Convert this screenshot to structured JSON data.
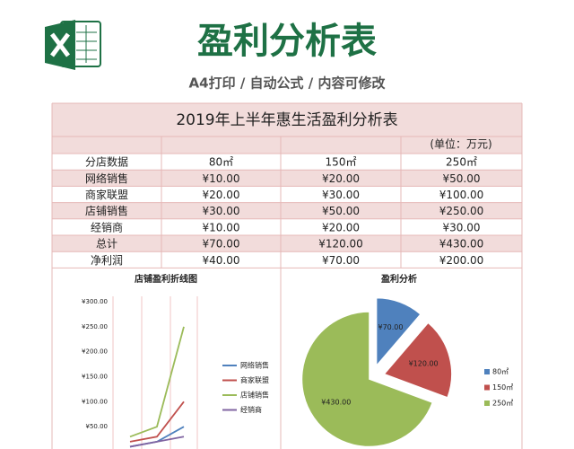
{
  "header": {
    "title": "盈利分析表",
    "subtitle": "A4打印 / 自动公式 / 内容可修改"
  },
  "table": {
    "title": "2019年上半年惠生活盈利分析表",
    "unit": "(单位：万元)",
    "rows": [
      [
        "分店数据",
        "80㎡",
        "150㎡",
        "250㎡"
      ],
      [
        "网络销售",
        "¥10.00",
        "¥20.00",
        "¥50.00"
      ],
      [
        "商家联盟",
        "¥20.00",
        "¥30.00",
        "¥100.00"
      ],
      [
        "店铺销售",
        "¥30.00",
        "¥50.00",
        "¥250.00"
      ],
      [
        "经销商",
        "¥10.00",
        "¥20.00",
        "¥30.00"
      ],
      [
        "总计",
        "¥70.00",
        "¥120.00",
        "¥430.00"
      ],
      [
        "净利润",
        "¥40.00",
        "¥70.00",
        "¥200.00"
      ]
    ]
  },
  "chart_data": [
    {
      "type": "line",
      "title": "店铺盈利折线图",
      "ylim": [
        0,
        300
      ],
      "yticks": [
        {
          "value": 50,
          "label": "¥50.00"
        },
        {
          "value": 100,
          "label": "¥100.00"
        },
        {
          "value": 150,
          "label": "¥150.00"
        },
        {
          "value": 200,
          "label": "¥200.00"
        },
        {
          "value": 250,
          "label": "¥250.00"
        },
        {
          "value": 300,
          "label": "¥300.00"
        }
      ],
      "grid": false,
      "series": [
        {
          "name": "网络销售",
          "color": "#4f81bd",
          "values": [
            10,
            20,
            50
          ]
        },
        {
          "name": "商家联盟",
          "color": "#c0504d",
          "values": [
            20,
            30,
            100
          ]
        },
        {
          "name": "店铺销售",
          "color": "#9bbb59",
          "values": [
            30,
            50,
            250
          ]
        },
        {
          "name": "经销商",
          "color": "#8064a2",
          "values": [
            10,
            20,
            30
          ]
        }
      ]
    },
    {
      "type": "pie",
      "title": "盈利分析",
      "categories": [
        "80㎡",
        "150㎡",
        "250㎡"
      ],
      "values": [
        70,
        120,
        430
      ],
      "value_labels": [
        "¥70.00",
        "¥120.00",
        "¥430.00"
      ],
      "colors": [
        "#4f81bd",
        "#c0504d",
        "#9bbb59"
      ]
    }
  ]
}
